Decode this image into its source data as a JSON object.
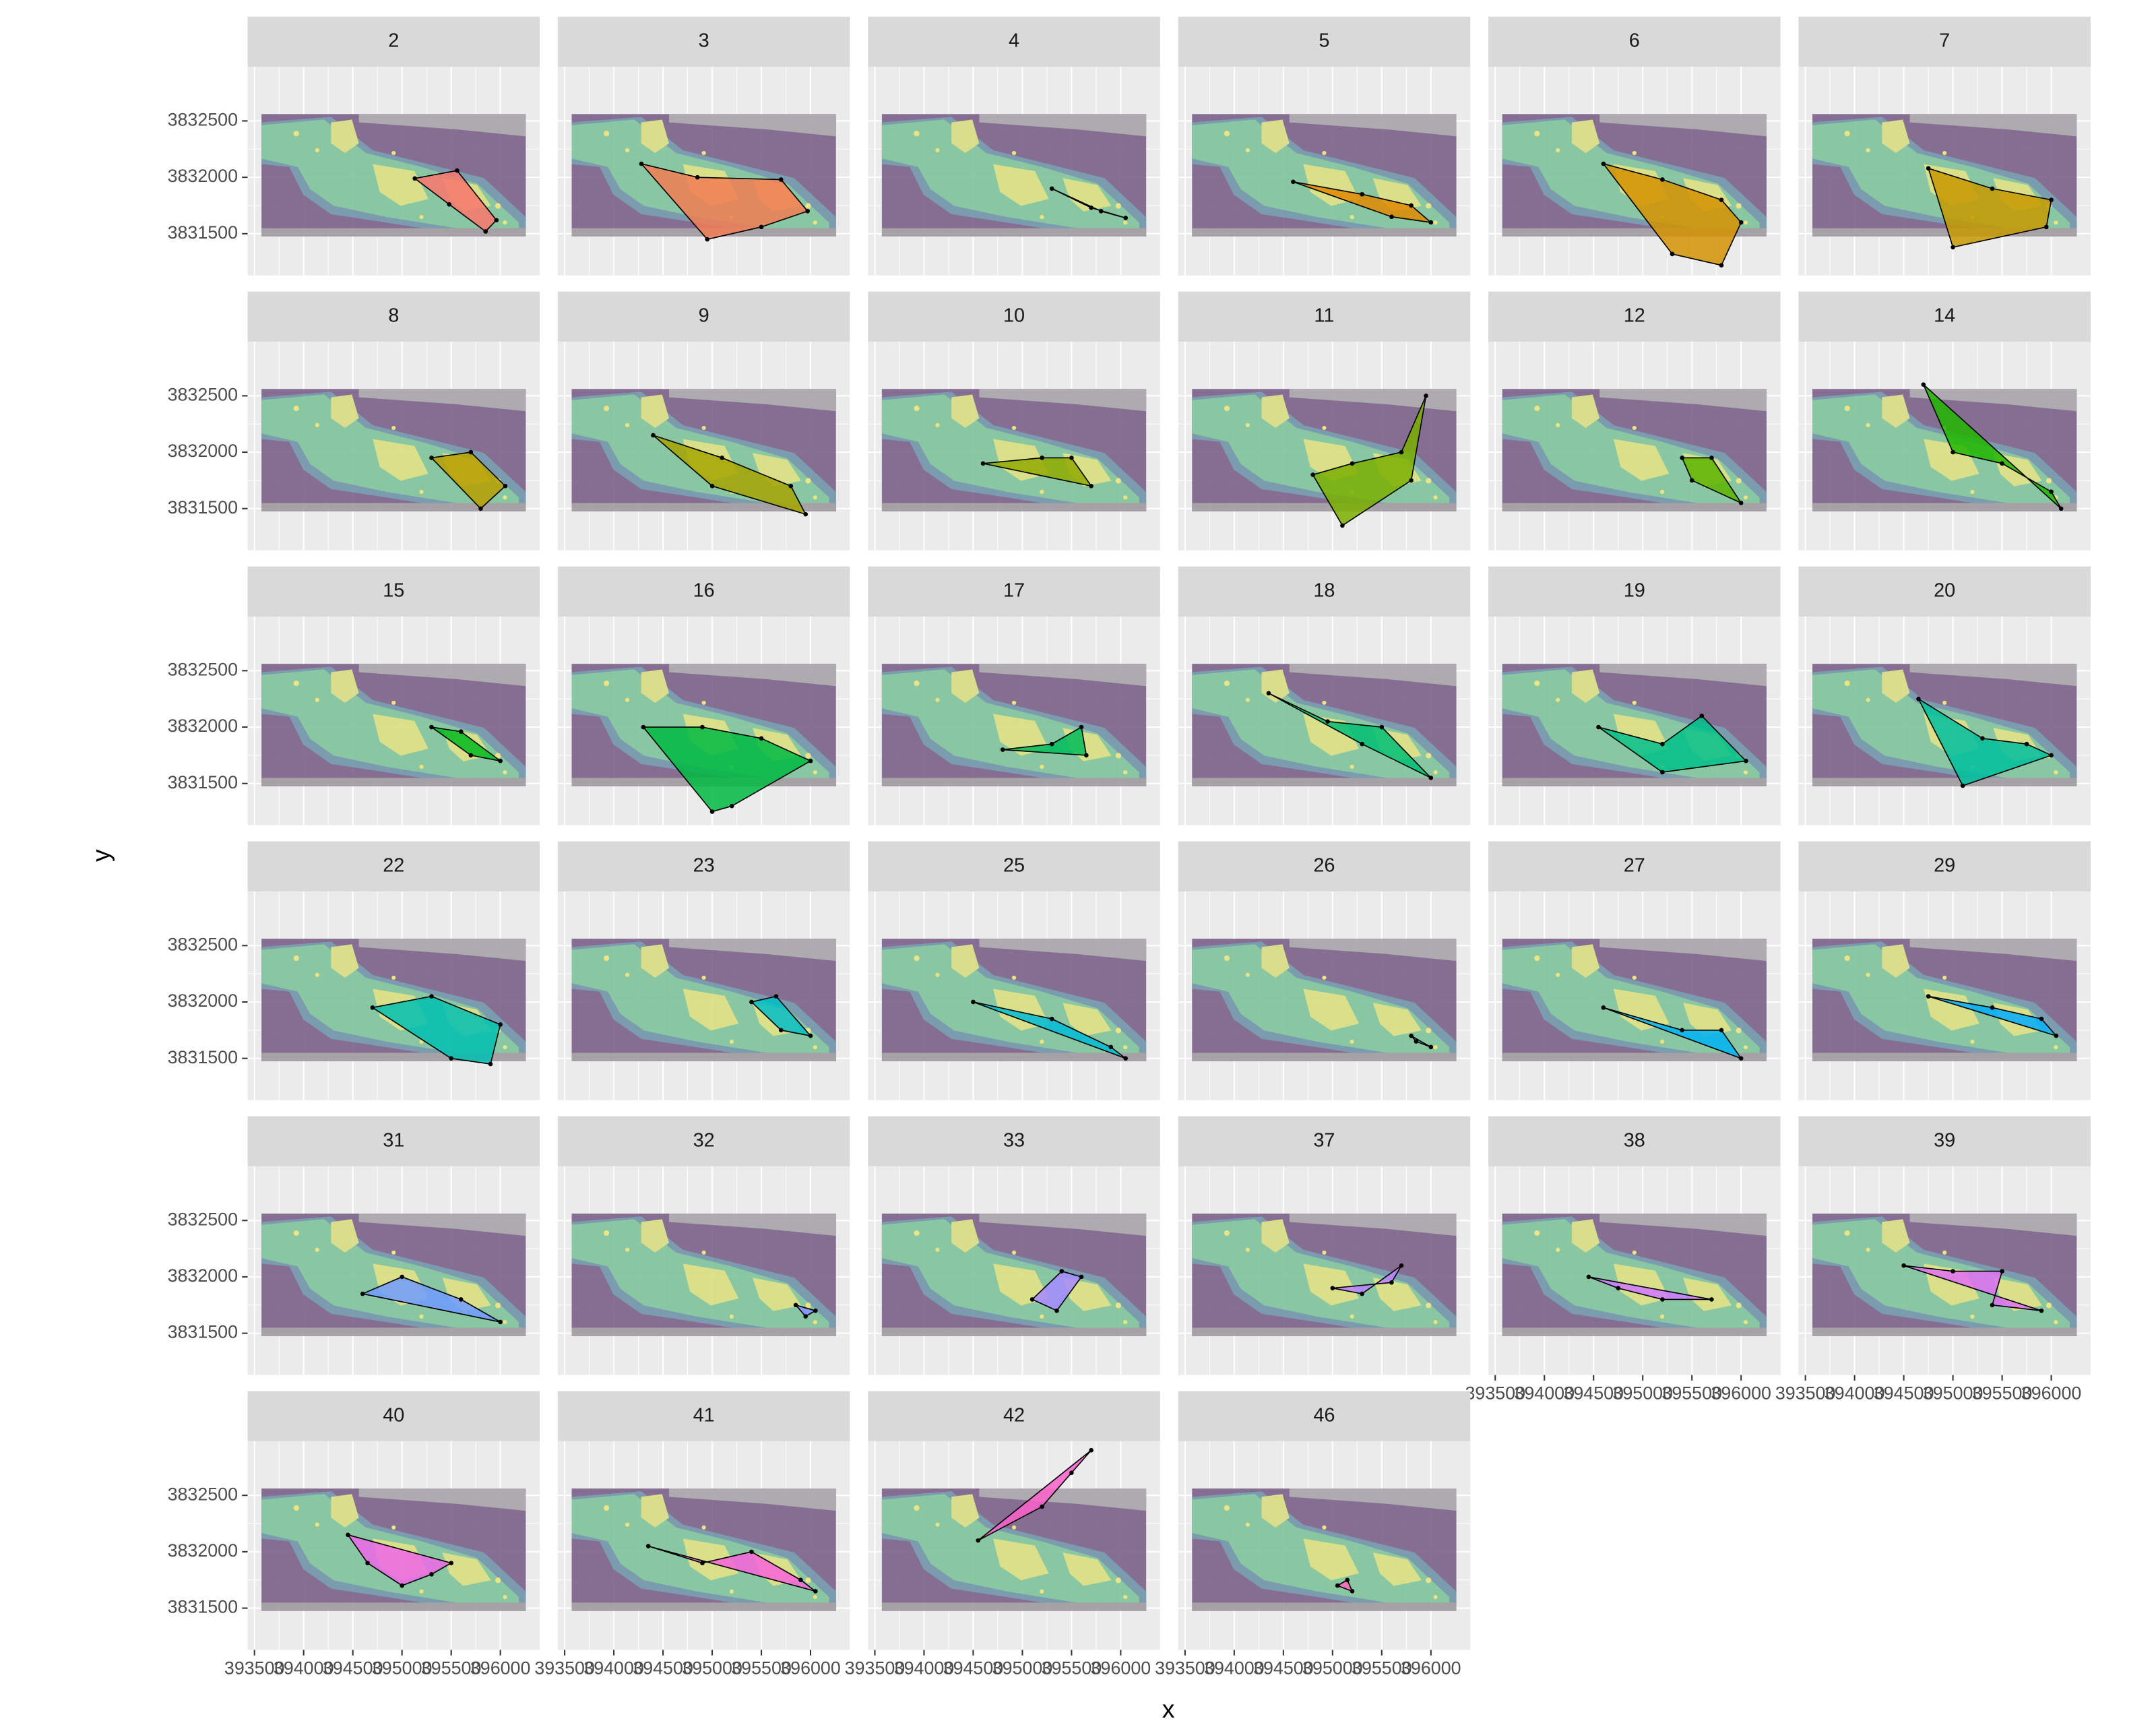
{
  "chart_data": {
    "type": "scatter",
    "x_label": "x",
    "y_label": "y",
    "xlim": [
      393430,
      396400
    ],
    "ylim": [
      3831130,
      3832980
    ],
    "xticks": [
      393500,
      394000,
      394500,
      395000,
      395500,
      396000
    ],
    "yticks": [
      3831500,
      3832000,
      3832500
    ],
    "grid": true,
    "panels": [
      {
        "label": 2,
        "color": "#F8766D",
        "x": [
          395130,
          395560,
          395960,
          395850,
          395480
        ],
        "y": [
          3831990,
          3832060,
          3831620,
          3831520,
          3831760
        ]
      },
      {
        "label": 3,
        "color": "#F27D53",
        "x": [
          394280,
          394850,
          395700,
          395970,
          395500,
          394950
        ],
        "y": [
          3832120,
          3832000,
          3831980,
          3831700,
          3831560,
          3831450
        ]
      },
      {
        "label": 4,
        "color": "#EA8331",
        "x": [
          395300,
          395800,
          396050,
          395700
        ],
        "y": [
          3831900,
          3831700,
          3831640,
          3831730
        ]
      },
      {
        "label": 5,
        "color": "#E08A00",
        "x": [
          394600,
          395300,
          395800,
          396000,
          395600
        ],
        "y": [
          3831960,
          3831850,
          3831750,
          3831600,
          3831650
        ]
      },
      {
        "label": 6,
        "color": "#D49200",
        "x": [
          394600,
          395200,
          395800,
          396000,
          395800,
          395300
        ],
        "y": [
          3832120,
          3831980,
          3831800,
          3831600,
          3831220,
          3831320
        ]
      },
      {
        "label": 7,
        "color": "#C69900",
        "x": [
          394750,
          395400,
          396000,
          395950,
          395000
        ],
        "y": [
          3832080,
          3831900,
          3831800,
          3831560,
          3831380
        ]
      },
      {
        "label": 8,
        "color": "#B79F00",
        "x": [
          395300,
          395700,
          396050,
          395800
        ],
        "y": [
          3831950,
          3832000,
          3831700,
          3831500
        ]
      },
      {
        "label": 9,
        "color": "#A5A500",
        "x": [
          394400,
          395100,
          395800,
          395950,
          395000
        ],
        "y": [
          3832150,
          3831950,
          3831700,
          3831450,
          3831700
        ]
      },
      {
        "label": 10,
        "color": "#91AA00",
        "x": [
          394600,
          395200,
          395500,
          395700
        ],
        "y": [
          3831900,
          3831950,
          3831950,
          3831700
        ]
      },
      {
        "label": 11,
        "color": "#7AAF00",
        "x": [
          394800,
          395200,
          395700,
          395950,
          395800,
          395100
        ],
        "y": [
          3831800,
          3831900,
          3832000,
          3832500,
          3831750,
          3831350
        ]
      },
      {
        "label": 12,
        "color": "#5BB300",
        "x": [
          395400,
          395700,
          396000,
          395500
        ],
        "y": [
          3831950,
          3831950,
          3831550,
          3831750
        ]
      },
      {
        "label": 14,
        "color": "#20B600",
        "x": [
          394700,
          395000,
          395500,
          396000,
          396100
        ],
        "y": [
          3832600,
          3832000,
          3831900,
          3831650,
          3831500
        ]
      },
      {
        "label": 15,
        "color": "#00B81F",
        "x": [
          395300,
          395600,
          396000,
          395700
        ],
        "y": [
          3832000,
          3831960,
          3831700,
          3831750
        ]
      },
      {
        "label": 16,
        "color": "#00BA42",
        "x": [
          394300,
          394900,
          395500,
          396000,
          395200,
          395000
        ],
        "y": [
          3832000,
          3832000,
          3831900,
          3831700,
          3831300,
          3831250
        ]
      },
      {
        "label": 17,
        "color": "#00BC5C",
        "x": [
          394800,
          395300,
          395600,
          395650
        ],
        "y": [
          3831800,
          3831850,
          3832000,
          3831750
        ]
      },
      {
        "label": 18,
        "color": "#00BE73",
        "x": [
          394350,
          394950,
          395500,
          396000,
          395300
        ],
        "y": [
          3832300,
          3832050,
          3832000,
          3831550,
          3831850
        ]
      },
      {
        "label": 19,
        "color": "#00BF89",
        "x": [
          394550,
          395200,
          395600,
          396050,
          395200
        ],
        "y": [
          3832000,
          3831850,
          3832100,
          3831700,
          3831600
        ]
      },
      {
        "label": 20,
        "color": "#00C09E",
        "x": [
          394650,
          395300,
          395750,
          396000,
          395100
        ],
        "y": [
          3832250,
          3831900,
          3831850,
          3831750,
          3831480
        ]
      },
      {
        "label": 22,
        "color": "#00C0B2",
        "x": [
          394700,
          395300,
          396000,
          395900,
          395500
        ],
        "y": [
          3831950,
          3832050,
          3831800,
          3831450,
          3831500
        ]
      },
      {
        "label": 23,
        "color": "#00BEC5",
        "x": [
          395400,
          395650,
          396000,
          395700
        ],
        "y": [
          3832000,
          3832050,
          3831700,
          3831750
        ]
      },
      {
        "label": 25,
        "color": "#00BCD6",
        "x": [
          394500,
          395300,
          395900,
          396050
        ],
        "y": [
          3832000,
          3831850,
          3831600,
          3831500
        ]
      },
      {
        "label": 26,
        "color": "#00B8E5",
        "x": [
          395800,
          396000,
          395850
        ],
        "y": [
          3831700,
          3831600,
          3831650
        ]
      },
      {
        "label": 27,
        "color": "#00B2F3",
        "x": [
          394600,
          395400,
          395800,
          396000
        ],
        "y": [
          3831950,
          3831750,
          3831750,
          3831500
        ]
      },
      {
        "label": 29,
        "color": "#00ABFD",
        "x": [
          394750,
          395400,
          395900,
          396050
        ],
        "y": [
          3832050,
          3831950,
          3831850,
          3831700
        ]
      },
      {
        "label": 31,
        "color": "#6F9BFF",
        "x": [
          394600,
          395000,
          395600,
          396000
        ],
        "y": [
          3831850,
          3832000,
          3831800,
          3831600
        ]
      },
      {
        "label": 32,
        "color": "#8A93FF",
        "x": [
          395850,
          396050,
          395950
        ],
        "y": [
          3831750,
          3831700,
          3831650
        ]
      },
      {
        "label": 33,
        "color": "#A68AFF",
        "x": [
          395100,
          395400,
          395600,
          395350
        ],
        "y": [
          3831800,
          3832050,
          3832000,
          3831700
        ]
      },
      {
        "label": 37,
        "color": "#BB81FF",
        "x": [
          395000,
          395600,
          395700,
          395300
        ],
        "y": [
          3831900,
          3831950,
          3832100,
          3831850
        ]
      },
      {
        "label": 38,
        "color": "#CF78FF",
        "x": [
          394450,
          394750,
          395200,
          395700
        ],
        "y": [
          3832000,
          3831900,
          3831800,
          3831800
        ]
      },
      {
        "label": 39,
        "color": "#E06FF5",
        "x": [
          394500,
          395000,
          395500,
          395400,
          395900
        ],
        "y": [
          3832100,
          3832050,
          3832050,
          3831750,
          3831700
        ]
      },
      {
        "label": 40,
        "color": "#EE67E8",
        "x": [
          394450,
          394650,
          395000,
          395300,
          395500
        ],
        "y": [
          3832150,
          3831900,
          3831700,
          3831800,
          3831900
        ]
      },
      {
        "label": 41,
        "color": "#F763DA",
        "x": [
          394350,
          394900,
          395400,
          395900,
          396050
        ],
        "y": [
          3832050,
          3831900,
          3832000,
          3831750,
          3831650
        ]
      },
      {
        "label": 42,
        "color": "#FC61CB",
        "x": [
          394550,
          395200,
          395500,
          395700
        ],
        "y": [
          3832100,
          3832400,
          3832700,
          3832900
        ]
      },
      {
        "label": 46,
        "color": "#FF62BC",
        "x": [
          395050,
          395150,
          395200
        ],
        "y": [
          3831700,
          3831750,
          3831650
        ]
      }
    ]
  }
}
